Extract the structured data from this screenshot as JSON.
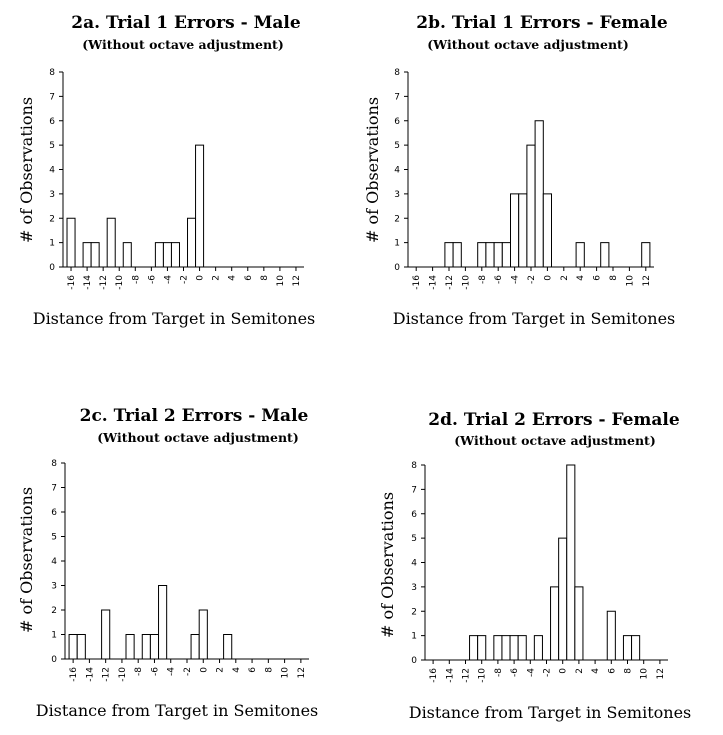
{
  "chart_data": [
    {
      "type": "bar",
      "title": "2a. Trial 1 Errors - Male",
      "subtitle": "(Without octave adjustment)",
      "xlabel": "Distance from Target in Semitones",
      "ylabel": "# of Observations",
      "xlim": [
        -17,
        13
      ],
      "ylim": [
        0,
        8
      ],
      "x_ticks": [
        -16,
        -14,
        -12,
        -10,
        -8,
        -6,
        -4,
        -2,
        0,
        2,
        4,
        6,
        8,
        10,
        12
      ],
      "y_ticks": [
        0,
        1,
        2,
        3,
        4,
        5,
        6,
        7,
        8
      ],
      "x": [
        -16,
        -14,
        -13,
        -11,
        -9,
        -5,
        -4,
        -3,
        -1,
        0
      ],
      "values": [
        2,
        1,
        1,
        2,
        1,
        1,
        1,
        1,
        2,
        5
      ]
    },
    {
      "type": "bar",
      "title": "2b. Trial 1 Errors - Female",
      "subtitle": "(Without octave adjustment)",
      "xlabel": "Distance from Target in Semitones",
      "ylabel": "# of Observations",
      "xlim": [
        -17,
        13
      ],
      "ylim": [
        0,
        8
      ],
      "x_ticks": [
        -16,
        -14,
        -12,
        -10,
        -8,
        -6,
        -4,
        -2,
        0,
        2,
        4,
        6,
        8,
        10,
        12
      ],
      "y_ticks": [
        0,
        1,
        2,
        3,
        4,
        5,
        6,
        7,
        8
      ],
      "x": [
        -12,
        -11,
        -8,
        -7,
        -6,
        -5,
        -4,
        -3,
        -2,
        -1,
        0,
        4,
        7,
        12
      ],
      "values": [
        1,
        1,
        1,
        1,
        1,
        1,
        3,
        3,
        5,
        6,
        3,
        1,
        1,
        1
      ]
    },
    {
      "type": "bar",
      "title": "2c. Trial 2 Errors - Male",
      "subtitle": "(Without octave adjustment)",
      "xlabel": "Distance from Target in Semitones",
      "ylabel": "# of Observations",
      "xlim": [
        -17,
        13
      ],
      "ylim": [
        0,
        8
      ],
      "x_ticks": [
        -16,
        -14,
        -12,
        -10,
        -8,
        -6,
        -4,
        -2,
        0,
        2,
        4,
        6,
        8,
        10,
        12
      ],
      "y_ticks": [
        0,
        1,
        2,
        3,
        4,
        5,
        6,
        7,
        8
      ],
      "x": [
        -16,
        -15,
        -12,
        -9,
        -7,
        -6,
        -5,
        -1,
        0,
        3
      ],
      "values": [
        1,
        1,
        2,
        1,
        1,
        1,
        3,
        1,
        2,
        1
      ]
    },
    {
      "type": "bar",
      "title": "2d. Trial 2 Errors - Female",
      "subtitle": "(Without octave adjustment)",
      "xlabel": "Distance from Target in Semitones",
      "ylabel": "# of Observations",
      "xlim": [
        -17,
        13
      ],
      "ylim": [
        0,
        8
      ],
      "x_ticks": [
        -16,
        -14,
        -12,
        -10,
        -8,
        -6,
        -4,
        -2,
        0,
        2,
        4,
        6,
        8,
        10,
        12
      ],
      "y_ticks": [
        0,
        1,
        2,
        3,
        4,
        5,
        6,
        7,
        8
      ],
      "x": [
        -11,
        -10,
        -8,
        -7,
        -6,
        -5,
        -3,
        -1,
        0,
        1,
        2,
        6,
        8,
        9
      ],
      "values": [
        1,
        1,
        1,
        1,
        1,
        1,
        1,
        3,
        5,
        8,
        3,
        2,
        1,
        1
      ]
    }
  ]
}
